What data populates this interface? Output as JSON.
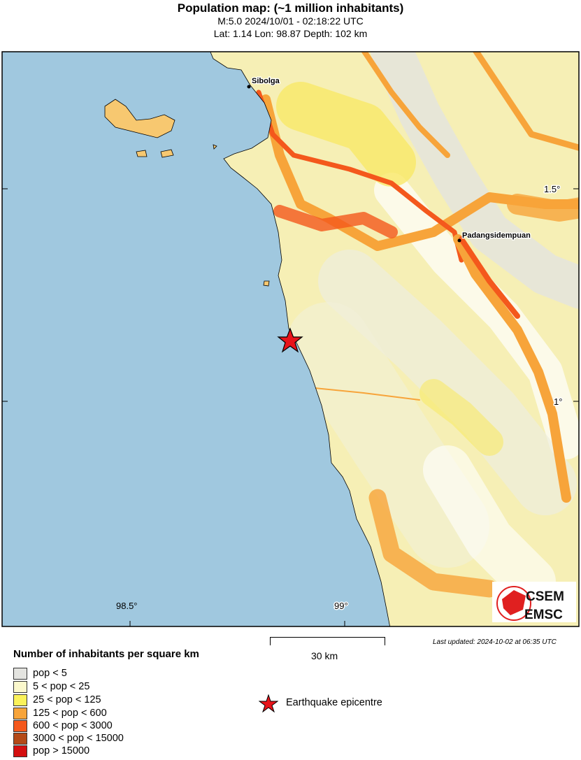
{
  "header": {
    "title": "Population map: (~1 million inhabitants)",
    "event": "M:5.0 2024/10/01 - 02:18:22 UTC",
    "location": "Lat: 1.14 Lon: 98.87 Depth: 102 km"
  },
  "map": {
    "cities": [
      {
        "name": "Sibolga"
      },
      {
        "name": "Padangsidempuan"
      }
    ],
    "lat_ticks": [
      "1.5°",
      "1°"
    ],
    "lon_ticks": [
      "98.5°",
      "99°"
    ],
    "sea_color": "#a0c8df",
    "epicentre_color": "#e8141a",
    "logo": {
      "text_top": "CSEM",
      "text_bottom": "EMSC"
    }
  },
  "scale_bar": {
    "label": "30 km"
  },
  "last_updated": "Last updated: 2024-10-02 at 06:35 UTC",
  "legend": {
    "title": "Number of inhabitants per square km",
    "items": [
      {
        "label": "pop < 5",
        "color": "#e4e4e0"
      },
      {
        "label": "5 < pop < 25",
        "color": "#fbf8cc"
      },
      {
        "label": "25 < pop < 125",
        "color": "#fbf25a"
      },
      {
        "label": "125 < pop < 600",
        "color": "#f7a43a"
      },
      {
        "label": "600 < pop < 3000",
        "color": "#f4581c"
      },
      {
        "label": "3000 < pop < 15000",
        "color": "#b44a18"
      },
      {
        "label": "pop > 15000",
        "color": "#d40f10"
      }
    ],
    "epicentre_label": "Earthquake epicentre"
  }
}
